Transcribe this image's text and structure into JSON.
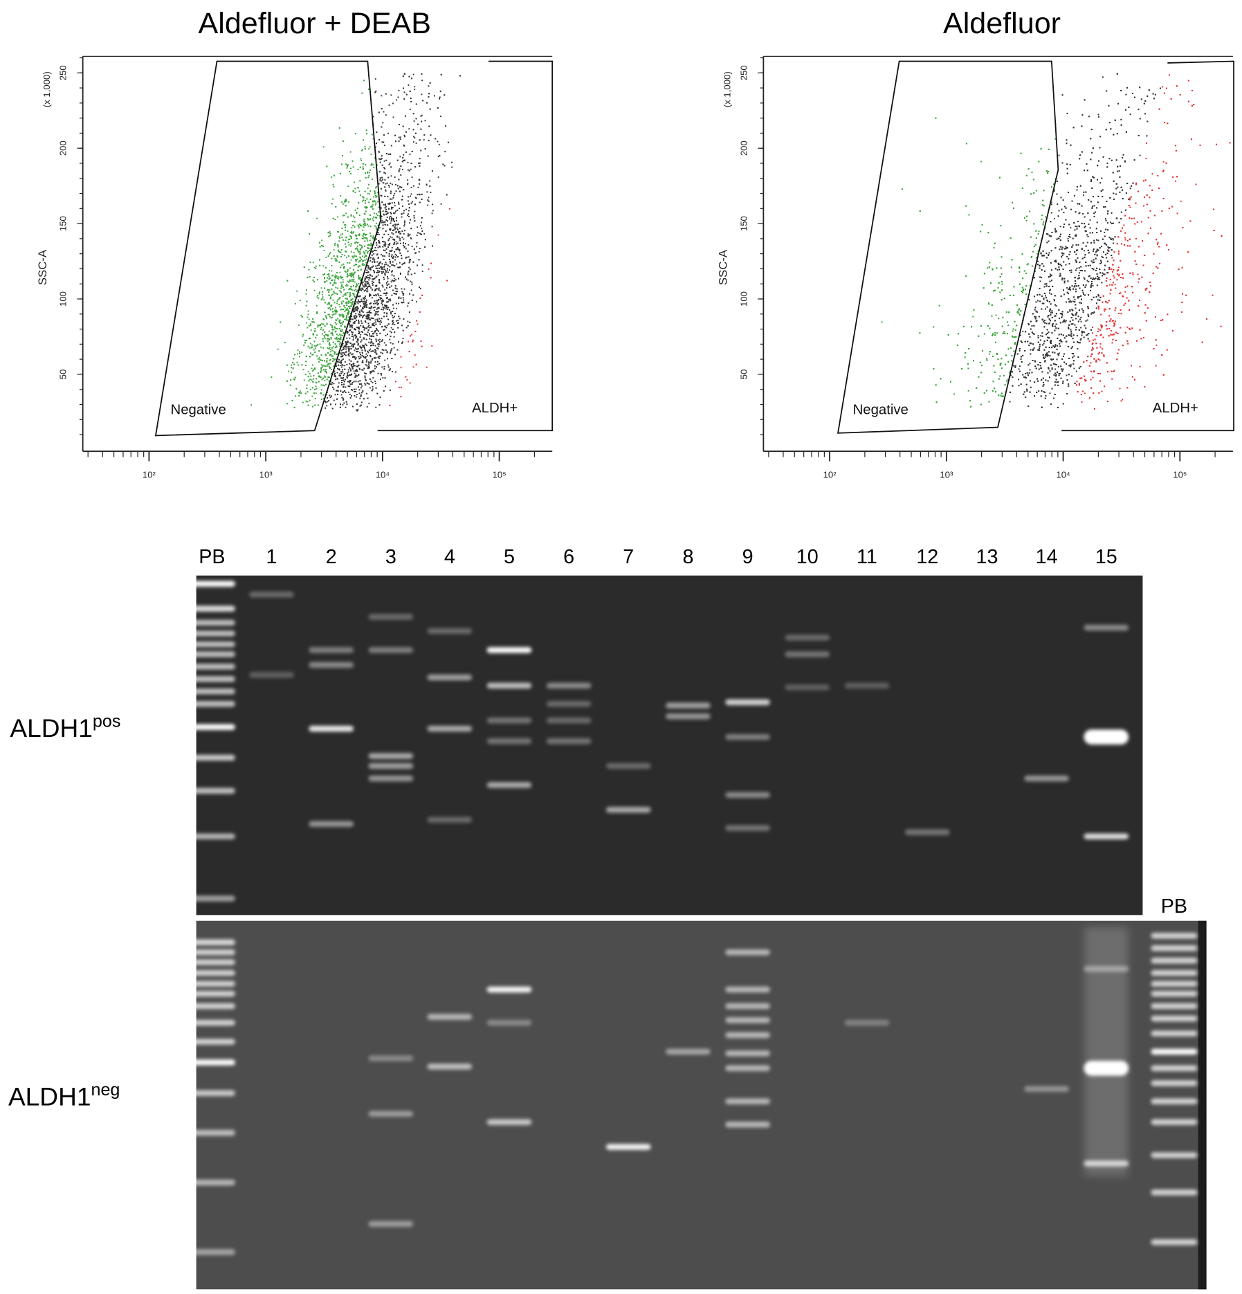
{
  "plots": [
    {
      "title": "Aldefluor + DEAB",
      "y_label": "SSC-A",
      "y_unit": "(x 1,000)",
      "yticks": [
        50,
        100,
        150,
        200,
        250
      ],
      "xticks": [
        {
          "value": 100,
          "label": "10²"
        },
        {
          "value": 1000,
          "label": "10³"
        },
        {
          "value": 10000,
          "label": "10⁴"
        },
        {
          "value": 100000,
          "label": "10⁵"
        }
      ],
      "gates": [
        "Negative",
        "ALDH+"
      ]
    },
    {
      "title": "Aldefluor",
      "y_label": "SSC-A",
      "y_unit": "(x 1,000)",
      "yticks": [
        50,
        100,
        150,
        200,
        250
      ],
      "xticks": [
        {
          "value": 100,
          "label": "10²"
        },
        {
          "value": 1000,
          "label": "10³"
        },
        {
          "value": 10000,
          "label": "10⁴"
        },
        {
          "value": 100000,
          "label": "10⁵"
        }
      ],
      "gates": [
        "Negative",
        "ALDH+"
      ]
    }
  ],
  "gel": {
    "lanes": [
      "PB",
      "1",
      "2",
      "3",
      "4",
      "5",
      "6",
      "7",
      "8",
      "9",
      "10",
      "11",
      "12",
      "13",
      "14",
      "15"
    ],
    "rows": [
      {
        "label": "ALDH1",
        "sup": "pos"
      },
      {
        "label": "ALDH1",
        "sup": "neg"
      }
    ],
    "ladder_label": "PB"
  }
}
